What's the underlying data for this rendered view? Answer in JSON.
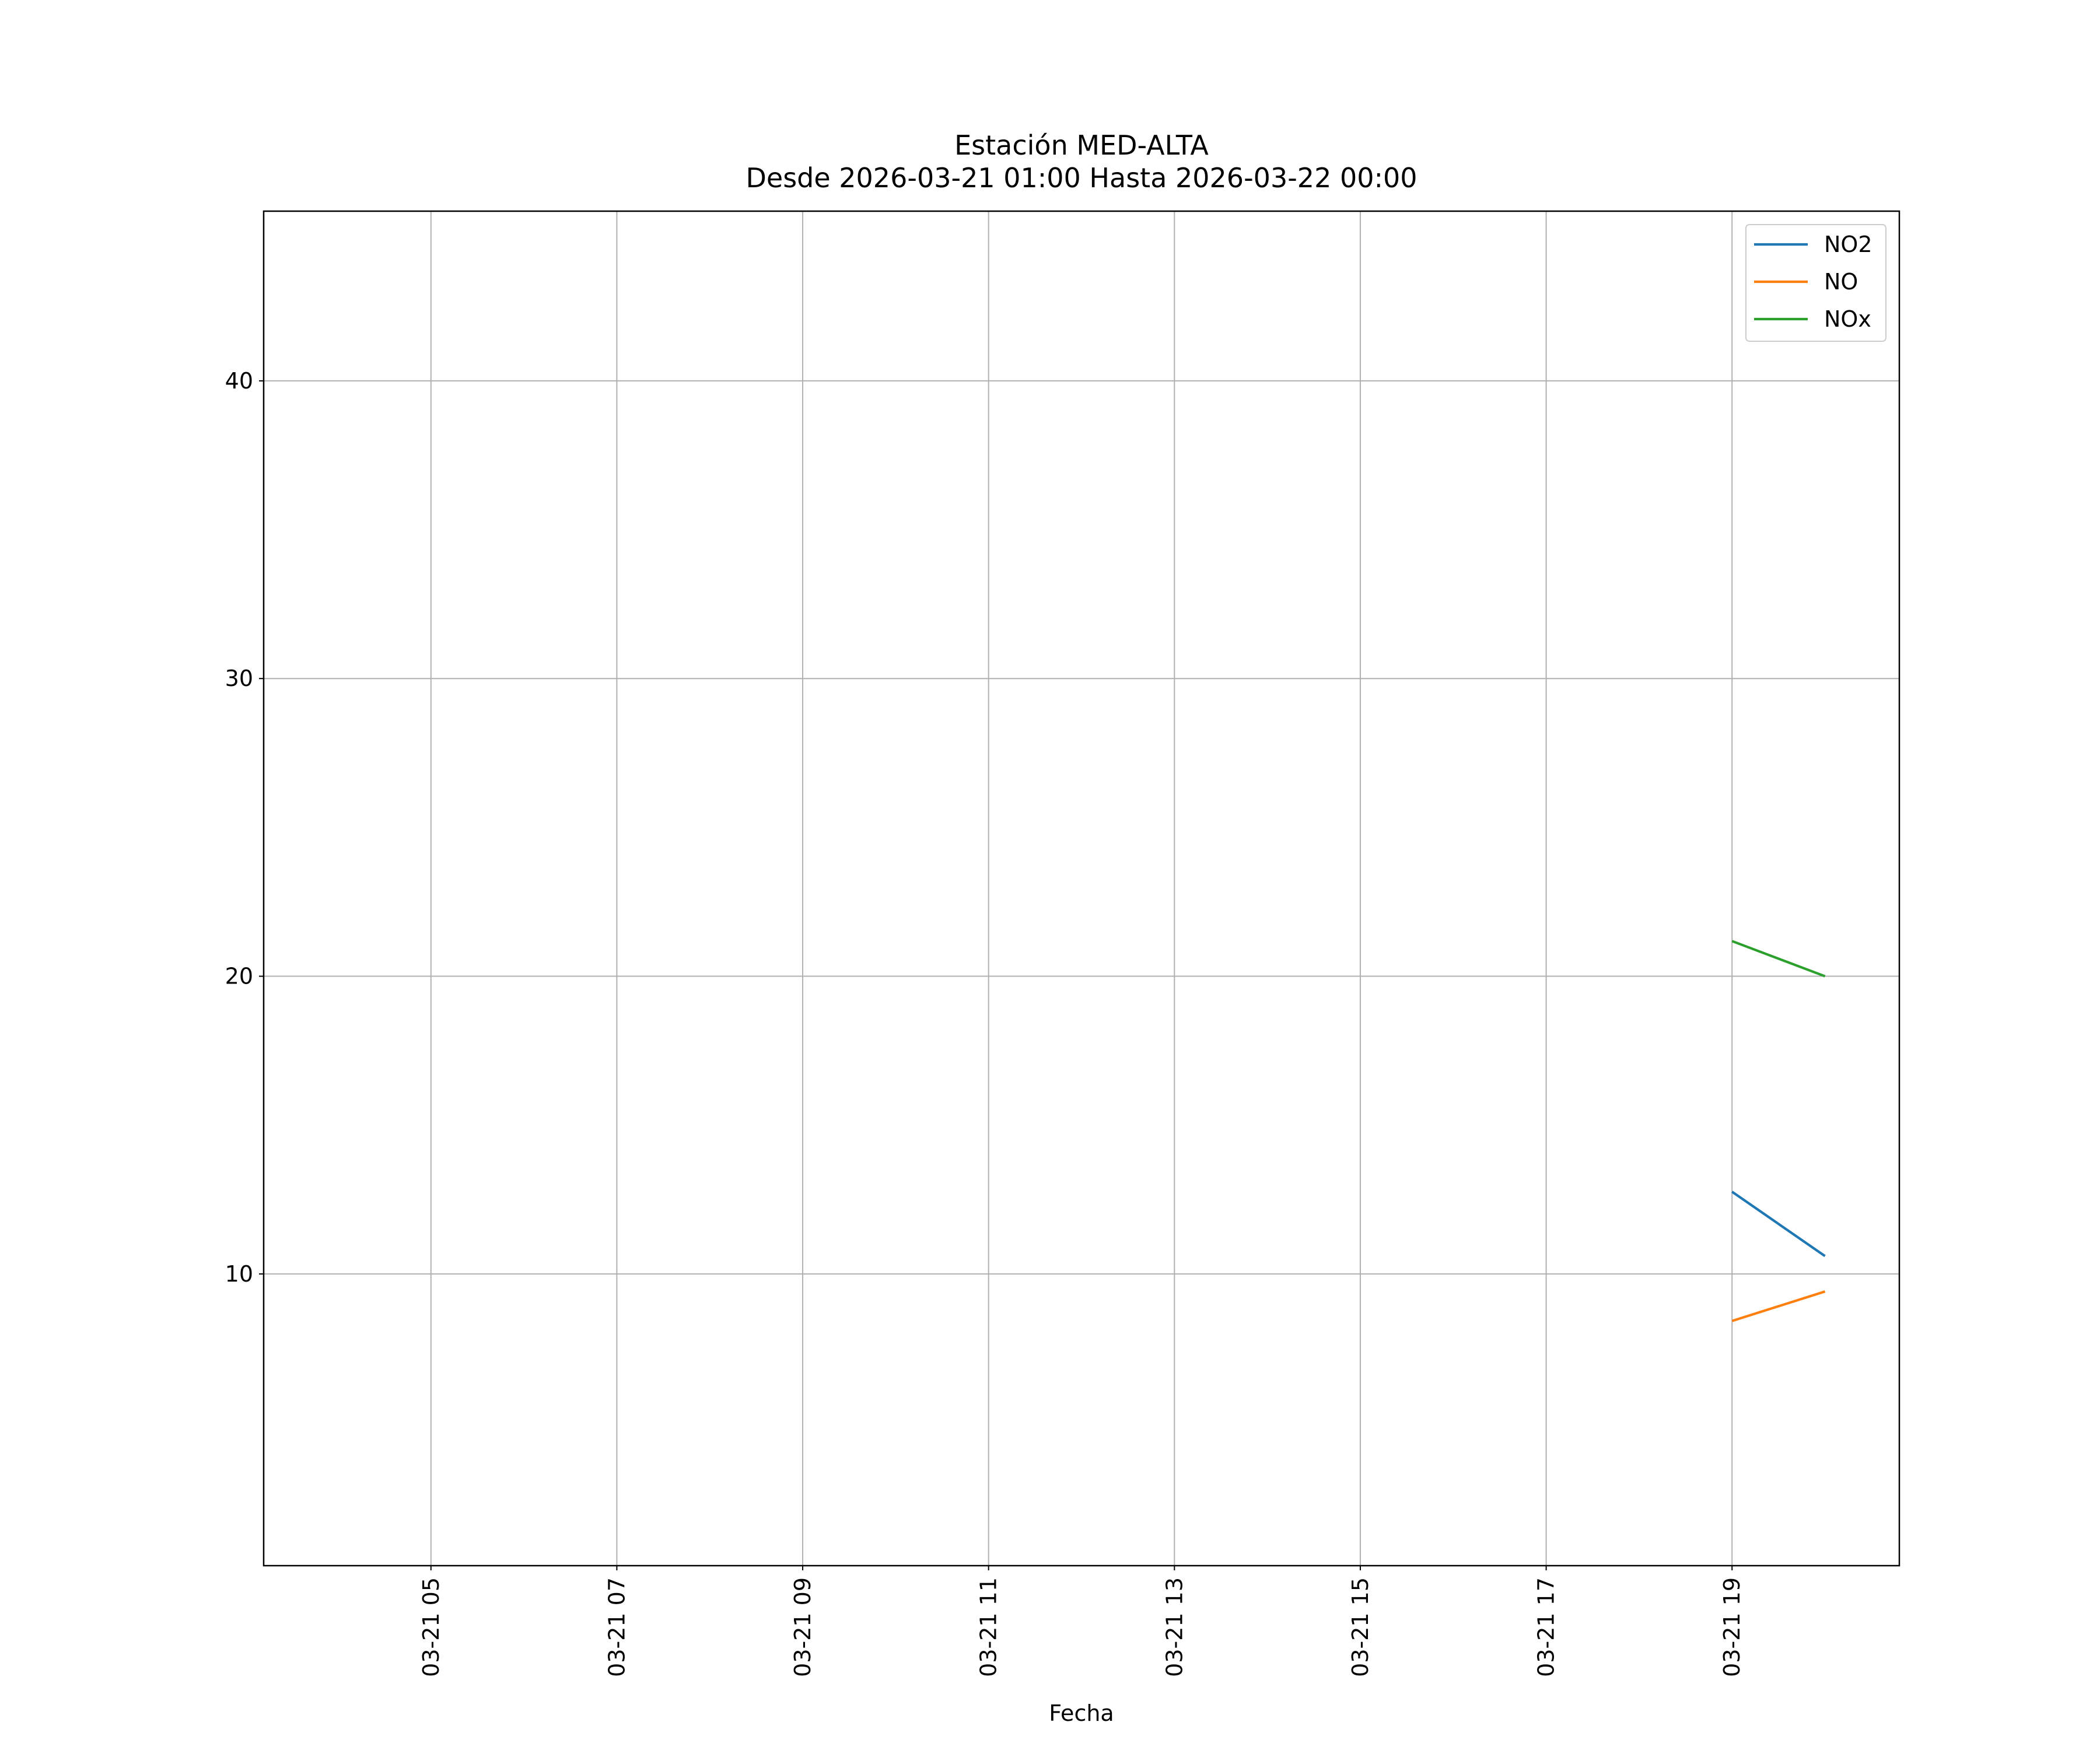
{
  "chart_data": {
    "type": "line",
    "title": "Estación MED-ALTA",
    "subtitle": "Desde 2026-03-21 01:00 Hasta 2026-03-22 00:00",
    "x_label": "Fecha",
    "x": [
      19,
      20
    ],
    "series": [
      {
        "name": "NO2",
        "color": "#1f77b4",
        "values": [
          12.76,
          10.6
        ]
      },
      {
        "name": "NO",
        "color": "#ff7f0e",
        "values": [
          8.42,
          9.41
        ]
      },
      {
        "name": "NOx",
        "color": "#2ca02c",
        "values": [
          21.18,
          20.0
        ]
      }
    ],
    "xlim": [
      3.2,
      20.8
    ],
    "xticks": [
      {
        "value": 5,
        "label": "03-21 05"
      },
      {
        "value": 7,
        "label": "03-21 07"
      },
      {
        "value": 9,
        "label": "03-21 09"
      },
      {
        "value": 11,
        "label": "03-21 11"
      },
      {
        "value": 13,
        "label": "03-21 13"
      },
      {
        "value": 15,
        "label": "03-21 15"
      },
      {
        "value": 17,
        "label": "03-21 17"
      },
      {
        "value": 19,
        "label": "03-21 19"
      }
    ],
    "ylim": [
      0.2,
      45.7
    ],
    "yticks": [
      10,
      20,
      30,
      40
    ],
    "grid": true,
    "legend": "upper right"
  }
}
